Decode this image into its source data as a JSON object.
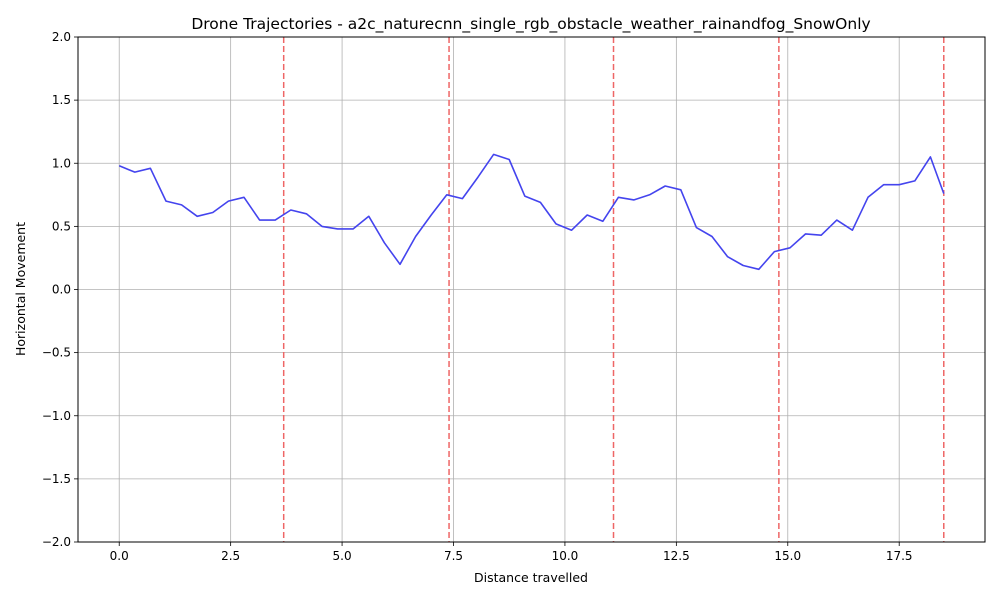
{
  "chart_data": {
    "type": "line",
    "title": "Drone Trajectories - a2c_naturecnn_single_rgb_obstacle_weather_rainandfog_SnowOnly",
    "xlabel": "Distance travelled",
    "ylabel": "Horizontal Movement",
    "xlim": [
      -0.925,
      19.425
    ],
    "ylim": [
      -2.0,
      2.0
    ],
    "xticks": [
      0.0,
      2.5,
      5.0,
      7.5,
      10.0,
      12.5,
      15.0,
      17.5
    ],
    "xtick_labels": [
      "0.0",
      "2.5",
      "5.0",
      "7.5",
      "10.0",
      "12.5",
      "15.0",
      "17.5"
    ],
    "yticks": [
      2.0,
      1.5,
      1.0,
      0.5,
      0.0,
      -0.5,
      -1.0,
      -1.5,
      -2.0
    ],
    "ytick_labels": [
      "2.0",
      "1.5",
      "1.0",
      "0.5",
      "0.0",
      "−0.5",
      "−1.0",
      "−1.5",
      "−2.0"
    ],
    "grid": true,
    "line_color": "#4444ee",
    "vline_color": "#ee6666",
    "vlines": [
      3.69,
      7.4,
      11.09,
      14.8,
      18.5
    ],
    "series": [
      {
        "x": [
          0.0,
          0.35,
          0.7,
          1.05,
          1.4,
          1.75,
          2.1,
          2.45,
          2.8,
          3.15,
          3.5,
          3.85,
          4.2,
          4.55,
          4.9,
          5.25,
          5.6,
          5.95,
          6.3,
          6.65,
          7.0,
          7.35,
          7.7,
          8.05,
          8.4,
          8.75,
          9.1,
          9.45,
          9.8,
          10.15,
          10.5,
          10.85,
          11.2,
          11.55,
          11.9,
          12.25,
          12.6,
          12.95,
          13.3,
          13.65,
          14.0,
          14.35,
          14.7,
          15.05,
          15.4,
          15.75,
          16.1,
          16.45,
          16.8,
          17.15,
          17.5,
          17.85,
          18.2,
          18.5
        ],
        "y": [
          0.98,
          0.93,
          0.96,
          0.7,
          0.67,
          0.58,
          0.61,
          0.7,
          0.73,
          0.55,
          0.55,
          0.63,
          0.6,
          0.5,
          0.48,
          0.48,
          0.58,
          0.37,
          0.2,
          0.42,
          0.59,
          0.75,
          0.72,
          0.89,
          1.07,
          1.03,
          0.74,
          0.69,
          0.52,
          0.47,
          0.59,
          0.54,
          0.73,
          0.71,
          0.75,
          0.82,
          0.79,
          0.49,
          0.42,
          0.26,
          0.19,
          0.16,
          0.3,
          0.33,
          0.44,
          0.43,
          0.55,
          0.47,
          0.73,
          0.83,
          0.83,
          0.86,
          1.05,
          0.76
        ]
      }
    ]
  }
}
